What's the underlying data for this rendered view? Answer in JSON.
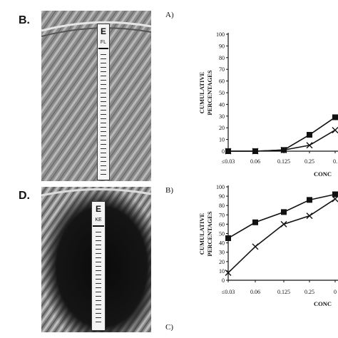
{
  "figure": {
    "panel_b_label": "B.",
    "panel_d_label": "D.",
    "strip_b": {
      "logo": "E",
      "code": "FL"
    },
    "strip_d": {
      "logo": "E",
      "code": "KE"
    },
    "colors": {
      "line": "#111111",
      "plate_b": "#8f8f8f",
      "plate_d": "#5a5a5a"
    }
  },
  "chart_data": [
    {
      "type": "line",
      "panel_label": "A)",
      "categories": [
        "≤0.03",
        "0.06",
        "0.125",
        "0.25",
        "0."
      ],
      "ylabel": [
        "CUMULATIVE",
        "PERCENTAGES"
      ],
      "xlabel": "CONC",
      "ylim": [
        0,
        100
      ],
      "yticks": [
        0,
        10,
        20,
        30,
        40,
        50,
        60,
        70,
        80,
        90,
        100
      ],
      "series": [
        {
          "marker": "square",
          "values": [
            0,
            0,
            1,
            14,
            29
          ]
        },
        {
          "marker": "x",
          "values": [
            0,
            0,
            1,
            5,
            18
          ]
        }
      ]
    },
    {
      "type": "line",
      "panel_label": "B)",
      "categories": [
        "≤0.03",
        "0.06",
        "0.125",
        "0.25",
        "0"
      ],
      "ylabel": [
        "CUMULATIVE",
        "PERCENTAGES"
      ],
      "xlabel": "CONC",
      "ylim": [
        0,
        100
      ],
      "yticks": [
        0,
        10,
        20,
        30,
        40,
        50,
        60,
        70,
        80,
        90,
        100
      ],
      "series": [
        {
          "marker": "square",
          "values": [
            45,
            62,
            73,
            86,
            92
          ]
        },
        {
          "marker": "x",
          "values": [
            8,
            36,
            60,
            69,
            87
          ]
        }
      ]
    }
  ],
  "panel_c": {
    "label": "C)"
  }
}
